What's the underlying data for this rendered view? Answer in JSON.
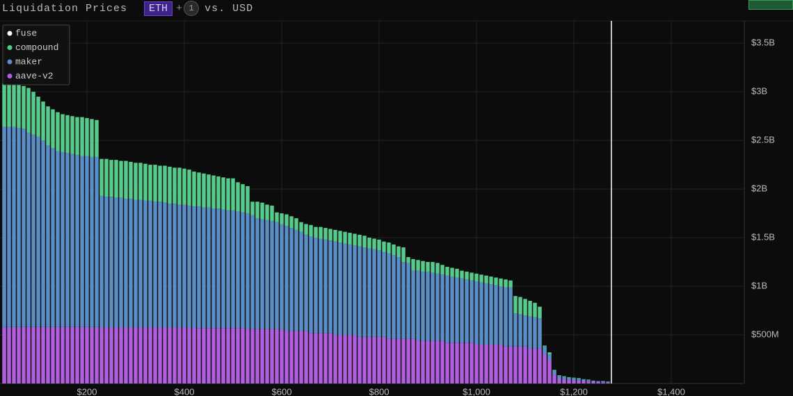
{
  "header": {
    "title": "Liquidation Prices",
    "symbol": "ETH",
    "plus": "+",
    "count": "1",
    "versus": "vs. USD"
  },
  "chart_data": {
    "type": "stacked-bar",
    "x": [
      30,
      40,
      50,
      60,
      70,
      80,
      90,
      100,
      110,
      120,
      130,
      140,
      150,
      160,
      170,
      180,
      190,
      200,
      210,
      220,
      230,
      240,
      250,
      260,
      270,
      280,
      290,
      300,
      310,
      320,
      330,
      340,
      350,
      360,
      370,
      380,
      390,
      400,
      410,
      420,
      430,
      440,
      450,
      460,
      470,
      480,
      490,
      500,
      510,
      520,
      530,
      540,
      550,
      560,
      570,
      580,
      590,
      600,
      610,
      620,
      630,
      640,
      650,
      660,
      670,
      680,
      690,
      700,
      710,
      720,
      730,
      740,
      750,
      760,
      770,
      780,
      790,
      800,
      810,
      820,
      830,
      840,
      850,
      860,
      870,
      880,
      890,
      900,
      910,
      920,
      930,
      940,
      950,
      960,
      970,
      980,
      990,
      1000,
      1010,
      1020,
      1030,
      1040,
      1050,
      1060,
      1070,
      1080,
      1090,
      1100,
      1110,
      1120,
      1130,
      1140,
      1150,
      1160,
      1170,
      1180,
      1190,
      1200,
      1210,
      1220,
      1230,
      1240,
      1250,
      1260,
      1270
    ],
    "series": [
      {
        "name": "aave-v2",
        "color": "#b25ee0",
        "values": [
          580,
          580,
          580,
          580,
          580,
          580,
          580,
          580,
          580,
          580,
          580,
          580,
          580,
          580,
          580,
          580,
          580,
          580,
          580,
          580,
          575,
          575,
          575,
          575,
          575,
          575,
          575,
          575,
          575,
          575,
          575,
          575,
          575,
          575,
          575,
          575,
          575,
          575,
          575,
          575,
          570,
          570,
          570,
          570,
          570,
          570,
          570,
          570,
          570,
          570,
          560,
          560,
          560,
          560,
          560,
          560,
          560,
          560,
          540,
          540,
          540,
          540,
          540,
          520,
          520,
          520,
          520,
          520,
          500,
          500,
          500,
          500,
          500,
          480,
          480,
          480,
          480,
          480,
          480,
          460,
          460,
          460,
          460,
          460,
          460,
          440,
          440,
          440,
          440,
          440,
          440,
          420,
          420,
          420,
          420,
          420,
          420,
          400,
          400,
          400,
          400,
          400,
          400,
          380,
          380,
          380,
          380,
          380,
          360,
          360,
          360,
          300,
          240,
          90,
          50,
          45,
          40,
          35,
          30,
          25,
          20,
          18,
          15,
          12,
          10
        ]
      },
      {
        "name": "maker",
        "color": "#5a8ec8",
        "values": [
          2060,
          2060,
          2060,
          2050,
          2040,
          2000,
          1980,
          1960,
          1920,
          1870,
          1840,
          1810,
          1800,
          1790,
          1780,
          1770,
          1760,
          1760,
          1750,
          1750,
          1355,
          1345,
          1345,
          1335,
          1335,
          1325,
          1325,
          1315,
          1315,
          1305,
          1305,
          1295,
          1295,
          1285,
          1275,
          1275,
          1265,
          1265,
          1255,
          1245,
          1250,
          1240,
          1240,
          1230,
          1230,
          1220,
          1210,
          1210,
          1200,
          1190,
          1190,
          1170,
          1140,
          1130,
          1120,
          1110,
          1100,
          1080,
          1080,
          1060,
          1040,
          1020,
          990,
          990,
          980,
          970,
          960,
          950,
          960,
          950,
          940,
          930,
          920,
          930,
          920,
          910,
          900,
          890,
          870,
          880,
          860,
          840,
          790,
          780,
          700,
          720,
          710,
          710,
          700,
          690,
          680,
          690,
          680,
          670,
          660,
          650,
          640,
          650,
          640,
          630,
          620,
          610,
          600,
          610,
          610,
          340,
          330,
          320,
          330,
          320,
          310,
          80,
          60,
          40,
          30,
          25,
          20,
          20,
          20,
          20,
          15,
          12,
          10,
          8,
          5
        ]
      },
      {
        "name": "compound",
        "color": "#56cc8c",
        "values": [
          450,
          450,
          450,
          450,
          440,
          460,
          440,
          410,
          400,
          400,
          400,
          400,
          390,
          390,
          390,
          390,
          400,
          390,
          390,
          380,
          380,
          390,
          380,
          390,
          380,
          390,
          380,
          380,
          380,
          380,
          370,
          380,
          370,
          380,
          380,
          370,
          380,
          370,
          370,
          360,
          350,
          350,
          340,
          340,
          330,
          330,
          330,
          330,
          300,
          290,
          280,
          140,
          170,
          170,
          160,
          160,
          100,
          110,
          120,
          120,
          120,
          100,
          110,
          120,
          110,
          120,
          120,
          120,
          120,
          120,
          120,
          120,
          120,
          120,
          120,
          110,
          110,
          110,
          110,
          110,
          110,
          110,
          150,
          60,
          120,
          110,
          110,
          100,
          110,
          110,
          100,
          90,
          90,
          90,
          80,
          80,
          80,
          80,
          80,
          80,
          80,
          80,
          80,
          80,
          70,
          180,
          180,
          170,
          160,
          150,
          120,
          10,
          20,
          10,
          5,
          5,
          5,
          5,
          5,
          0,
          5,
          0,
          0,
          5,
          5
        ]
      },
      {
        "name": "fuse",
        "color": "#ffffff",
        "values": [
          0,
          0,
          0,
          0,
          0,
          0,
          0,
          0,
          0,
          0,
          0,
          0,
          0,
          0,
          0,
          0,
          0,
          0,
          0,
          0,
          0,
          0,
          0,
          0,
          0,
          0,
          0,
          0,
          0,
          0,
          0,
          0,
          0,
          0,
          0,
          0,
          0,
          0,
          0,
          0,
          0,
          0,
          0,
          0,
          0,
          0,
          0,
          0,
          0,
          0,
          0,
          0,
          0,
          0,
          0,
          0,
          0,
          0,
          0,
          0,
          0,
          0,
          0,
          0,
          0,
          0,
          0,
          0,
          0,
          0,
          0,
          0,
          0,
          0,
          0,
          0,
          0,
          0,
          0,
          0,
          0,
          0,
          0,
          0,
          0,
          0,
          0,
          0,
          0,
          0,
          0,
          0,
          0,
          0,
          0,
          0,
          0,
          0,
          0,
          0,
          0,
          0,
          0,
          0,
          0,
          0,
          0,
          0,
          0,
          0,
          0,
          0,
          0,
          0,
          0,
          0,
          0,
          0,
          0,
          0,
          0,
          0,
          0,
          0,
          0
        ]
      }
    ],
    "xlim": [
      21.4,
      1550
    ],
    "xticks": [
      {
        "value": 200,
        "label": "$200"
      },
      {
        "value": 400,
        "label": "$400"
      },
      {
        "value": 600,
        "label": "$600"
      },
      {
        "value": 800,
        "label": "$800"
      },
      {
        "value": 1000,
        "label": "$1,000"
      },
      {
        "value": 1200,
        "label": "$1,200"
      },
      {
        "value": 1400,
        "label": "$1,400"
      }
    ],
    "ylim": [
      0,
      3730
    ],
    "yticks": [
      {
        "value": 500,
        "label": "$500M"
      },
      {
        "value": 1000,
        "label": "$1B"
      },
      {
        "value": 1500,
        "label": "$1.5B"
      },
      {
        "value": 2000,
        "label": "$2B"
      },
      {
        "value": 2500,
        "label": "$2.5B"
      },
      {
        "value": 3000,
        "label": "$3B"
      },
      {
        "value": 3500,
        "label": "$3.5B"
      }
    ],
    "current_price": 1277,
    "grid": true,
    "legend": "upper left",
    "legend_reversed": true
  }
}
